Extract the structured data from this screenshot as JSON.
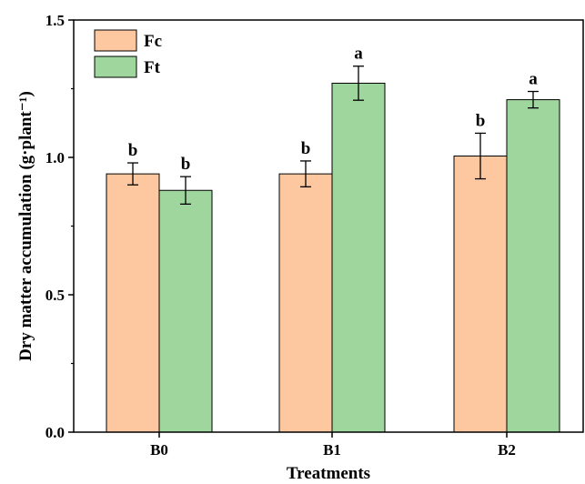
{
  "chart_data": {
    "type": "bar",
    "title": "",
    "xlabel": "Treatments",
    "ylabel": "Dry matter accumulation (g·plant⁻¹)",
    "ylim": [
      0,
      1.5
    ],
    "yticks": [
      "0.0",
      "0.5",
      "1.0",
      "1.5"
    ],
    "categories": [
      "B0",
      "B1",
      "B2"
    ],
    "legend_position": "top-left",
    "grid": false,
    "series": [
      {
        "name": "Fc",
        "color": "#FDC89F",
        "values": [
          0.94,
          0.94,
          1.005
        ],
        "errors": [
          0.04,
          0.047,
          0.083
        ],
        "sig": [
          "b",
          "b",
          "b"
        ]
      },
      {
        "name": "Ft",
        "color": "#9ED69D",
        "values": [
          0.88,
          1.27,
          1.21
        ],
        "errors": [
          0.05,
          0.062,
          0.03
        ],
        "sig": [
          "b",
          "a",
          "a"
        ]
      }
    ]
  }
}
